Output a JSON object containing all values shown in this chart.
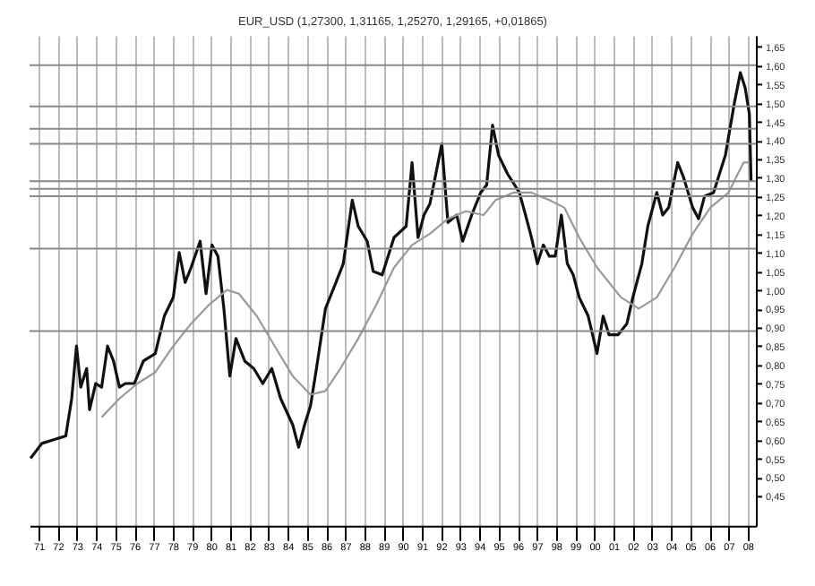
{
  "chart_data": {
    "type": "line",
    "title": "EUR_USD (1,27300, 1,31165, 1,25270, 1,29165, +0,01865)",
    "xlim": [
      1970.53,
      2008.43
    ],
    "xticks": [
      {
        "value": 1971,
        "label": "71"
      },
      {
        "value": 1972,
        "label": "72"
      },
      {
        "value": 1973,
        "label": "73"
      },
      {
        "value": 1974,
        "label": "74"
      },
      {
        "value": 1975,
        "label": "75"
      },
      {
        "value": 1976,
        "label": "76"
      },
      {
        "value": 1977,
        "label": "77"
      },
      {
        "value": 1978,
        "label": "78"
      },
      {
        "value": 1979,
        "label": "79"
      },
      {
        "value": 1980,
        "label": "80"
      },
      {
        "value": 1981,
        "label": "81"
      },
      {
        "value": 1982,
        "label": "82"
      },
      {
        "value": 1983,
        "label": "83"
      },
      {
        "value": 1984,
        "label": "84"
      },
      {
        "value": 1985,
        "label": "85"
      },
      {
        "value": 1986,
        "label": "86"
      },
      {
        "value": 1987,
        "label": "87"
      },
      {
        "value": 1988,
        "label": "88"
      },
      {
        "value": 1989,
        "label": "89"
      },
      {
        "value": 1990,
        "label": "90"
      },
      {
        "value": 1991,
        "label": "91"
      },
      {
        "value": 1992,
        "label": "92"
      },
      {
        "value": 1993,
        "label": "93"
      },
      {
        "value": 1994,
        "label": "94"
      },
      {
        "value": 1995,
        "label": "95"
      },
      {
        "value": 1996,
        "label": "96"
      },
      {
        "value": 1997,
        "label": "97"
      },
      {
        "value": 1998,
        "label": "98"
      },
      {
        "value": 1999,
        "label": "99"
      },
      {
        "value": 2000,
        "label": "00"
      },
      {
        "value": 2001,
        "label": "01"
      },
      {
        "value": 2002,
        "label": "02"
      },
      {
        "value": 2003,
        "label": "03"
      },
      {
        "value": 2004,
        "label": "04"
      },
      {
        "value": 2005,
        "label": "05"
      },
      {
        "value": 2006,
        "label": "06"
      },
      {
        "value": 2007,
        "label": "07"
      },
      {
        "value": 2008,
        "label": "08"
      }
    ],
    "ylim": [
      0.37,
      1.68
    ],
    "yticks": [
      {
        "value": 0.45,
        "label": "0,45"
      },
      {
        "value": 0.5,
        "label": "0,50"
      },
      {
        "value": 0.55,
        "label": "0,55"
      },
      {
        "value": 0.6,
        "label": "0,60"
      },
      {
        "value": 0.65,
        "label": "0,65"
      },
      {
        "value": 0.7,
        "label": "0,70"
      },
      {
        "value": 0.75,
        "label": "0,75"
      },
      {
        "value": 0.8,
        "label": "0,80"
      },
      {
        "value": 0.85,
        "label": "0,85"
      },
      {
        "value": 0.9,
        "label": "0,90"
      },
      {
        "value": 0.95,
        "label": "0,95"
      },
      {
        "value": 1.0,
        "label": "1,00"
      },
      {
        "value": 1.05,
        "label": "1,05"
      },
      {
        "value": 1.1,
        "label": "1,10"
      },
      {
        "value": 1.15,
        "label": "1,15"
      },
      {
        "value": 1.2,
        "label": "1,20"
      },
      {
        "value": 1.25,
        "label": "1,25"
      },
      {
        "value": 1.3,
        "label": "1,30"
      },
      {
        "value": 1.35,
        "label": "1,35"
      },
      {
        "value": 1.4,
        "label": "1,40"
      },
      {
        "value": 1.45,
        "label": "1,45"
      },
      {
        "value": 1.5,
        "label": "1,50"
      },
      {
        "value": 1.55,
        "label": "1,55"
      },
      {
        "value": 1.6,
        "label": "1,60"
      },
      {
        "value": 1.65,
        "label": "1,65"
      }
    ],
    "grid": "x",
    "ref_lines": [
      {
        "axis": "y",
        "value": 1.6,
        "color": "#888888"
      },
      {
        "axis": "y",
        "value": 1.49,
        "color": "#888888"
      },
      {
        "axis": "y",
        "value": 1.43,
        "color": "#888888"
      },
      {
        "axis": "y",
        "value": 1.39,
        "color": "#888888"
      },
      {
        "axis": "y",
        "value": 1.29,
        "color": "#888888"
      },
      {
        "axis": "y",
        "value": 1.27,
        "color": "#888888"
      },
      {
        "axis": "y",
        "value": 1.25,
        "color": "#888888"
      },
      {
        "axis": "y",
        "value": 1.11,
        "color": "#888888"
      },
      {
        "axis": "y",
        "value": 0.89,
        "color": "#888888"
      }
    ],
    "series": [
      {
        "color": "#111111",
        "x": [
          1970.58,
          1971.17,
          1971.79,
          1972.42,
          1972.73,
          1972.98,
          1973.2,
          1973.51,
          1973.66,
          1973.98,
          1974.29,
          1974.6,
          1974.91,
          1975.22,
          1975.53,
          1976.0,
          1976.47,
          1977.09,
          1977.56,
          1978.03,
          1978.34,
          1978.65,
          1978.96,
          1979.43,
          1979.74,
          1980.05,
          1980.36,
          1980.67,
          1980.98,
          1981.3,
          1981.76,
          1982.23,
          1982.7,
          1983.17,
          1983.63,
          1984.26,
          1984.57,
          1984.88,
          1985.19,
          1985.5,
          1985.97,
          1986.44,
          1986.9,
          1987.37,
          1987.68,
          1988.15,
          1988.46,
          1988.93,
          1989.55,
          1990.18,
          1990.49,
          1990.8,
          1991.11,
          1991.42,
          1992.04,
          1992.36,
          1992.82,
          1993.13,
          1993.6,
          1994.07,
          1994.38,
          1994.69,
          1995.0,
          1995.47,
          1996.09,
          1996.41,
          1996.72,
          1997.03,
          1997.34,
          1997.65,
          1997.96,
          1998.28,
          1998.59,
          1998.9,
          1999.21,
          1999.68,
          2000.14,
          2000.46,
          2000.77,
          2001.23,
          2001.7,
          2002.01,
          2002.48,
          2002.79,
          2003.26,
          2003.57,
          2003.88,
          2004.35,
          2004.66,
          2005.13,
          2005.44,
          2005.75,
          2006.22,
          2006.53,
          2006.84,
          2007.31,
          2007.62,
          2007.87,
          2008.09,
          2008.18
        ],
        "values": [
          0.55,
          0.59,
          0.6,
          0.61,
          0.71,
          0.85,
          0.74,
          0.79,
          0.68,
          0.75,
          0.74,
          0.85,
          0.81,
          0.74,
          0.75,
          0.75,
          0.81,
          0.83,
          0.93,
          0.98,
          1.1,
          1.02,
          1.06,
          1.13,
          0.99,
          1.12,
          1.09,
          0.95,
          0.77,
          0.87,
          0.81,
          0.79,
          0.75,
          0.79,
          0.71,
          0.64,
          0.58,
          0.64,
          0.69,
          0.79,
          0.95,
          1.01,
          1.07,
          1.24,
          1.17,
          1.13,
          1.05,
          1.04,
          1.14,
          1.17,
          1.34,
          1.14,
          1.2,
          1.23,
          1.39,
          1.18,
          1.2,
          1.13,
          1.2,
          1.26,
          1.28,
          1.44,
          1.36,
          1.31,
          1.26,
          1.2,
          1.14,
          1.07,
          1.12,
          1.09,
          1.09,
          1.2,
          1.07,
          1.04,
          0.98,
          0.93,
          0.83,
          0.93,
          0.88,
          0.88,
          0.91,
          0.98,
          1.07,
          1.17,
          1.26,
          1.2,
          1.22,
          1.34,
          1.3,
          1.22,
          1.19,
          1.25,
          1.26,
          1.31,
          1.36,
          1.5,
          1.58,
          1.54,
          1.47,
          1.29
        ]
      },
      {
        "color": "#999999",
        "x": [
          1974.29,
          1975.22,
          1976.16,
          1977.09,
          1978.03,
          1978.96,
          1979.89,
          1980.83,
          1981.45,
          1982.39,
          1983.32,
          1984.26,
          1985.19,
          1985.97,
          1986.75,
          1987.68,
          1988.62,
          1989.55,
          1990.49,
          1991.42,
          1992.36,
          1993.29,
          1994.22,
          1994.85,
          1995.78,
          1996.72,
          1997.65,
          1998.43,
          1999.21,
          2000.14,
          2001.39,
          2002.32,
          2003.26,
          2004.19,
          2005.13,
          2006.06,
          2007.0,
          2007.78,
          2008.09
        ],
        "values": [
          0.66,
          0.71,
          0.75,
          0.78,
          0.85,
          0.91,
          0.96,
          1.0,
          0.99,
          0.93,
          0.85,
          0.77,
          0.72,
          0.73,
          0.79,
          0.87,
          0.96,
          1.06,
          1.12,
          1.15,
          1.19,
          1.21,
          1.2,
          1.24,
          1.26,
          1.26,
          1.24,
          1.22,
          1.14,
          1.06,
          0.98,
          0.95,
          0.98,
          1.06,
          1.15,
          1.22,
          1.26,
          1.34,
          1.34
        ]
      }
    ]
  }
}
